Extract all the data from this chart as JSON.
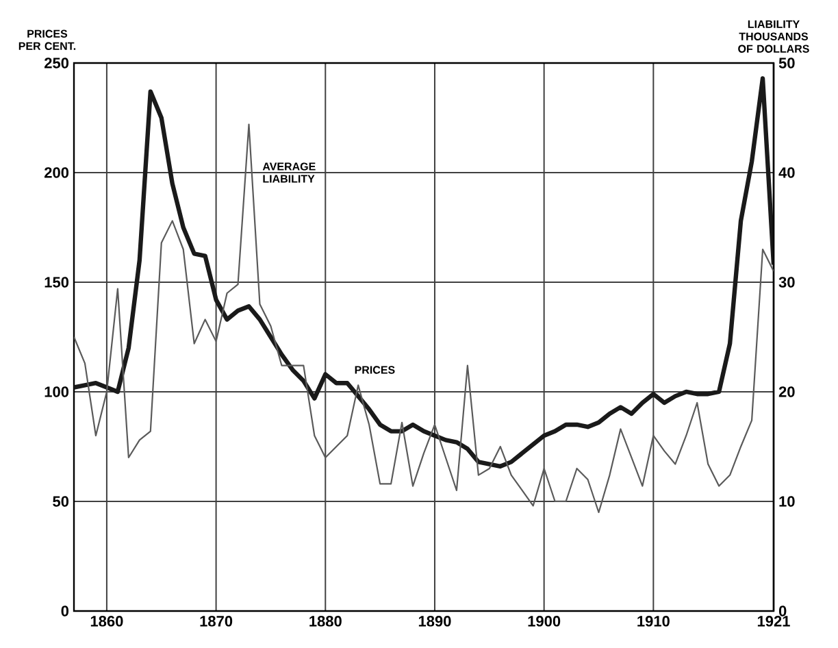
{
  "chart_data": {
    "type": "line",
    "ylabel": "PRICES PER CENT.",
    "y2label": "LIABILITY THOUSANDS OF DOLLARS",
    "x": [
      1857,
      1858,
      1859,
      1860,
      1861,
      1862,
      1863,
      1864,
      1865,
      1866,
      1867,
      1868,
      1869,
      1870,
      1871,
      1872,
      1873,
      1874,
      1875,
      1876,
      1877,
      1878,
      1879,
      1880,
      1881,
      1882,
      1883,
      1884,
      1885,
      1886,
      1887,
      1888,
      1889,
      1890,
      1891,
      1892,
      1893,
      1894,
      1895,
      1896,
      1897,
      1898,
      1899,
      1900,
      1901,
      1902,
      1903,
      1904,
      1905,
      1906,
      1907,
      1908,
      1909,
      1910,
      1911,
      1912,
      1913,
      1914,
      1915,
      1916,
      1917,
      1918,
      1919,
      1920,
      1921
    ],
    "series": [
      {
        "name": "PRICES",
        "color": "#1a1a1a",
        "values": [
          102,
          103,
          104,
          102,
          100,
          120,
          160,
          237,
          225,
          195,
          175,
          163,
          162,
          142,
          133,
          137,
          139,
          133,
          125,
          117,
          110,
          105,
          97,
          108,
          104,
          104,
          98,
          92,
          85,
          82,
          82,
          85,
          82,
          80,
          78,
          77,
          74,
          68,
          67,
          66,
          68,
          72,
          76,
          80,
          82,
          85,
          85,
          84,
          86,
          90,
          93,
          90,
          95,
          99,
          95,
          98,
          100,
          99,
          99,
          100,
          122,
          178,
          205,
          243,
          158
        ]
      },
      {
        "name": "AVERAGE LIABILITY",
        "color": "#5a5a5a",
        "axis": "y2",
        "values": [
          25,
          22.6,
          16,
          20,
          29.4,
          14,
          15.6,
          16.4,
          33.6,
          35.6,
          33,
          24.4,
          26.6,
          24.6,
          29,
          29.8,
          44.4,
          28,
          26,
          22.4,
          22.4,
          22.4,
          16,
          14,
          15,
          16,
          20.6,
          17,
          11.6,
          11.6,
          17.2,
          11.4,
          14.4,
          17,
          14,
          11,
          22.4,
          12.4,
          13,
          15,
          12.4,
          11,
          9.6,
          13,
          10,
          10,
          13,
          12,
          9,
          12.4,
          16.6,
          14,
          11.4,
          16,
          14.6,
          13.4,
          16,
          19,
          13.4,
          11.4,
          12.4,
          15,
          17.4,
          33,
          31
        ]
      }
    ],
    "xlim": [
      1857,
      1921
    ],
    "xticks": [
      1860,
      1870,
      1880,
      1890,
      1900,
      1910,
      1921
    ],
    "ylim": [
      0,
      250
    ],
    "yticks": [
      0,
      50,
      100,
      150,
      200,
      250
    ],
    "y2lim": [
      0,
      50
    ],
    "y2ticks": [
      0,
      10,
      20,
      30,
      40,
      50
    ],
    "grid": true
  }
}
